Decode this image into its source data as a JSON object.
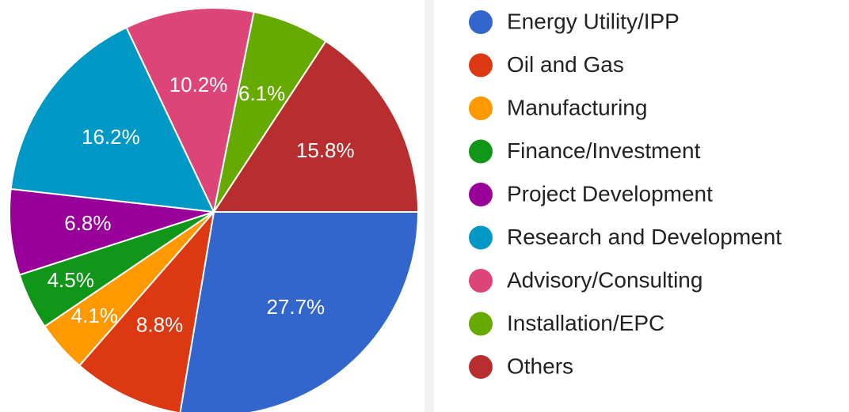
{
  "chart_data": {
    "type": "pie",
    "categories": [
      "Energy Utility/IPP",
      "Oil and Gas",
      "Manufacturing",
      "Finance/Investment",
      "Project Development",
      "Research and Development",
      "Advisory/Consulting",
      "Installation/EPC",
      "Others"
    ],
    "values": [
      27.7,
      8.8,
      4.1,
      4.5,
      6.8,
      16.2,
      10.2,
      6.1,
      15.8
    ],
    "value_labels": [
      "27.7%",
      "8.8%",
      "4.1%",
      "4.5%",
      "6.8%",
      "16.2%",
      "10.2%",
      "6.1%",
      "15.8%"
    ],
    "colors": [
      "#3366cc",
      "#dc3912",
      "#ff9900",
      "#109618",
      "#990099",
      "#0099c6",
      "#dd4477",
      "#66aa00",
      "#b82e2e"
    ],
    "legend": "right"
  }
}
